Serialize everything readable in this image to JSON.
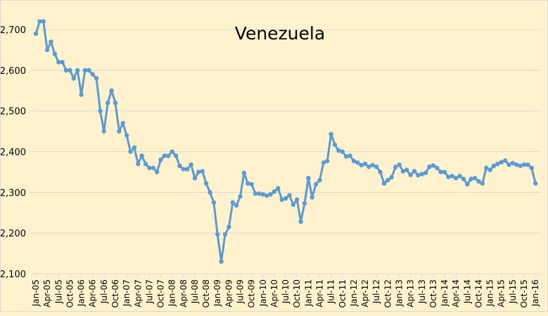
{
  "chart_data": {
    "type": "line",
    "title": "Venezuela",
    "xlabel": "",
    "ylabel": "",
    "ylim": [
      2100,
      2750
    ],
    "yticks": [
      2100,
      2200,
      2300,
      2400,
      2500,
      2600,
      2700
    ],
    "ytick_labels": [
      "2,100",
      "2,200",
      "2,300",
      "2,400",
      "2,500",
      "2,600",
      "2,700"
    ],
    "grid": true,
    "legend": "none",
    "x_tick_labels": [
      "Jan-05",
      "Apr-05",
      "Jul-05",
      "Oct-05",
      "Jan-06",
      "Apr-06",
      "Jul-06",
      "Oct-06",
      "Jan-07",
      "Apr-07",
      "Jul-07",
      "Oct-07",
      "Jan-08",
      "Apr-08",
      "Jul-08",
      "Oct-08",
      "Jan-09",
      "Apr-09",
      "Jul-09",
      "Oct-09",
      "Jan-10",
      "Apr-10",
      "Jul-10",
      "Oct-10",
      "Jan-11",
      "Apr-11",
      "Jul-11",
      "Oct-11",
      "Jan-12",
      "Apr-12",
      "Jul-12",
      "Oct-12",
      "Jan-13",
      "Apr-13",
      "Jul-13",
      "Oct-13",
      "Jan-14",
      "Apr-14",
      "Jul-14",
      "Oct-14",
      "Jan-15",
      "Apr-15",
      "Jul-15",
      "Oct-15",
      "Jan-16"
    ],
    "x_start": "Jan-05",
    "x_end": "Jan-16",
    "series": [
      {
        "name": "Venezuela",
        "color": "#5b9bd5",
        "values": [
          2690,
          2720,
          2720,
          2650,
          2670,
          2640,
          2620,
          2620,
          2600,
          2600,
          2580,
          2600,
          2540,
          2600,
          2600,
          2590,
          2580,
          2500,
          2450,
          2520,
          2550,
          2520,
          2450,
          2470,
          2440,
          2400,
          2410,
          2370,
          2390,
          2370,
          2360,
          2360,
          2350,
          2380,
          2390,
          2390,
          2400,
          2390,
          2365,
          2357,
          2357,
          2368,
          2335,
          2350,
          2352,
          2322,
          2300,
          2275,
          2197,
          2130,
          2197,
          2215,
          2275,
          2268,
          2290,
          2348,
          2322,
          2320,
          2297,
          2297,
          2295,
          2292,
          2295,
          2302,
          2310,
          2282,
          2285,
          2293,
          2270,
          2282,
          2228,
          2273,
          2335,
          2288,
          2320,
          2330,
          2373,
          2377,
          2443,
          2417,
          2403,
          2400,
          2388,
          2390,
          2377,
          2373,
          2367,
          2370,
          2363,
          2367,
          2363,
          2350,
          2322,
          2330,
          2337,
          2362,
          2368,
          2352,
          2355,
          2343,
          2352,
          2342,
          2345,
          2348,
          2363,
          2366,
          2360,
          2350,
          2350,
          2338,
          2340,
          2335,
          2340,
          2333,
          2320,
          2333,
          2335,
          2327,
          2322,
          2360,
          2355,
          2365,
          2370,
          2374,
          2378,
          2368,
          2372,
          2368,
          2365,
          2368,
          2368,
          2360,
          2322
        ]
      }
    ]
  },
  "colors": {
    "background": "#fff2cc",
    "gridline": "#d9d9d9",
    "line": "#5b9bd5",
    "text": "#000000"
  }
}
